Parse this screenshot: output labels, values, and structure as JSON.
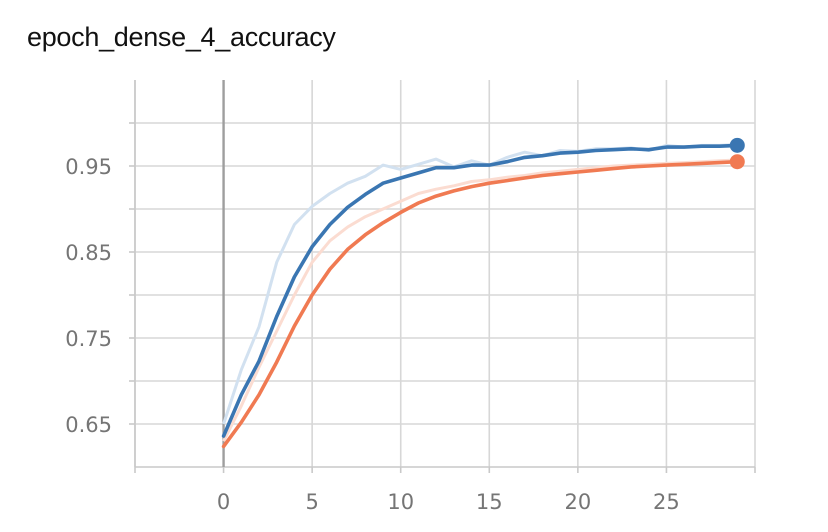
{
  "chart_data": {
    "type": "line",
    "title": "epoch_dense_4_accuracy",
    "xlabel": "",
    "ylabel": "",
    "xlim": [
      -5,
      30
    ],
    "ylim": [
      0.6,
      1.05
    ],
    "grid": true,
    "legend": "none",
    "x_ticks": [
      "0",
      "5",
      "10",
      "15",
      "20",
      "25"
    ],
    "x_tick_values": [
      0,
      5,
      10,
      15,
      20,
      25
    ],
    "y_ticks": [
      "0.65",
      "0.75",
      "0.85",
      "0.95"
    ],
    "y_tick_values": [
      0.65,
      0.75,
      0.85,
      0.95
    ],
    "x": [
      0,
      1,
      2,
      3,
      4,
      5,
      6,
      7,
      8,
      9,
      10,
      11,
      12,
      13,
      14,
      15,
      16,
      17,
      18,
      19,
      20,
      21,
      22,
      23,
      24,
      25,
      26,
      27,
      28,
      29
    ],
    "series": [
      {
        "color": "#3a76b2",
        "raw_color": "#d2e1f0",
        "values": [
          0.636,
          0.684,
          0.723,
          0.775,
          0.821,
          0.856,
          0.882,
          0.902,
          0.917,
          0.93,
          0.936,
          0.942,
          0.948,
          0.948,
          0.951,
          0.951,
          0.955,
          0.96,
          0.962,
          0.965,
          0.966,
          0.968,
          0.969,
          0.97,
          0.969,
          0.972,
          0.972,
          0.973,
          0.973,
          0.974
        ],
        "raw_values": [
          0.65,
          0.713,
          0.763,
          0.838,
          0.882,
          0.903,
          0.918,
          0.93,
          0.938,
          0.951,
          0.946,
          0.952,
          0.958,
          0.949,
          0.956,
          0.951,
          0.96,
          0.966,
          0.962,
          0.968,
          0.967,
          0.97,
          0.97,
          0.971,
          0.968,
          0.974,
          0.972,
          0.974,
          0.974,
          0.975
        ]
      },
      {
        "color": "#f07a52",
        "raw_color": "#fbdcd1",
        "values": [
          0.624,
          0.652,
          0.684,
          0.722,
          0.764,
          0.8,
          0.83,
          0.853,
          0.87,
          0.884,
          0.896,
          0.907,
          0.915,
          0.921,
          0.926,
          0.93,
          0.933,
          0.936,
          0.939,
          0.941,
          0.943,
          0.945,
          0.947,
          0.949,
          0.95,
          0.951,
          0.952,
          0.953,
          0.954,
          0.955
        ],
        "raw_values": [
          0.63,
          0.671,
          0.716,
          0.758,
          0.8,
          0.838,
          0.863,
          0.879,
          0.891,
          0.9,
          0.909,
          0.918,
          0.923,
          0.927,
          0.932,
          0.934,
          0.937,
          0.939,
          0.942,
          0.944,
          0.946,
          0.948,
          0.95,
          0.951,
          0.952,
          0.953,
          0.954,
          0.955,
          0.956,
          0.957
        ]
      }
    ]
  }
}
